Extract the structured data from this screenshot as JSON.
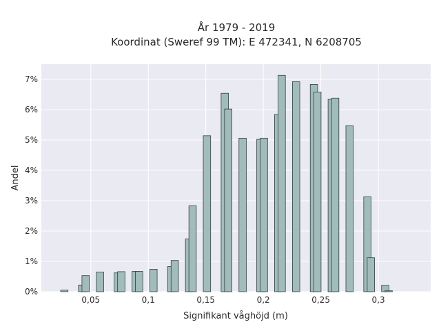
{
  "chart_data": {
    "type": "bar",
    "title": "År 1979 - 2019",
    "subtitle": "Koordinat (Sweref 99 TM): E 472341, N 6208705",
    "xlabel": "Signifikant våghöjd (m)",
    "ylabel": "Andel",
    "xlim": [
      0.007,
      0.3455
    ],
    "ylim": [
      0,
      7.5
    ],
    "x_ticks": [
      {
        "value": 0.05,
        "label": "0,05"
      },
      {
        "value": 0.1,
        "label": "0,1"
      },
      {
        "value": 0.15,
        "label": "0,15"
      },
      {
        "value": 0.2,
        "label": "0,2"
      },
      {
        "value": 0.25,
        "label": "0,25"
      },
      {
        "value": 0.3,
        "label": "0,3"
      }
    ],
    "y_ticks": [
      {
        "value": 0,
        "label": "0%"
      },
      {
        "value": 1,
        "label": "1%"
      },
      {
        "value": 2,
        "label": "2%"
      },
      {
        "value": 3,
        "label": "3%"
      },
      {
        "value": 4,
        "label": "4%"
      },
      {
        "value": 5,
        "label": "5%"
      },
      {
        "value": 6,
        "label": "6%"
      },
      {
        "value": 7,
        "label": "7%"
      }
    ],
    "bar_width": 0.0064,
    "bars": [
      {
        "x": 0.027,
        "value": 0.05
      },
      {
        "x": 0.0425,
        "value": 0.22
      },
      {
        "x": 0.0455,
        "value": 0.53
      },
      {
        "x": 0.058,
        "value": 0.65
      },
      {
        "x": 0.0735,
        "value": 0.62
      },
      {
        "x": 0.0765,
        "value": 0.66
      },
      {
        "x": 0.089,
        "value": 0.67
      },
      {
        "x": 0.092,
        "value": 0.67
      },
      {
        "x": 0.1045,
        "value": 0.74
      },
      {
        "x": 0.12,
        "value": 0.83
      },
      {
        "x": 0.123,
        "value": 1.03
      },
      {
        "x": 0.1355,
        "value": 1.74
      },
      {
        "x": 0.1385,
        "value": 2.83
      },
      {
        "x": 0.151,
        "value": 5.14
      },
      {
        "x": 0.1665,
        "value": 6.54
      },
      {
        "x": 0.1695,
        "value": 6.02
      },
      {
        "x": 0.182,
        "value": 5.06
      },
      {
        "x": 0.1975,
        "value": 5.02
      },
      {
        "x": 0.2005,
        "value": 5.06
      },
      {
        "x": 0.213,
        "value": 5.84
      },
      {
        "x": 0.216,
        "value": 7.13
      },
      {
        "x": 0.2285,
        "value": 6.92
      },
      {
        "x": 0.244,
        "value": 6.83
      },
      {
        "x": 0.247,
        "value": 6.58
      },
      {
        "x": 0.2595,
        "value": 6.34
      },
      {
        "x": 0.2625,
        "value": 6.38
      },
      {
        "x": 0.275,
        "value": 5.47
      },
      {
        "x": 0.2905,
        "value": 3.13
      },
      {
        "x": 0.2935,
        "value": 1.12
      },
      {
        "x": 0.306,
        "value": 0.21
      },
      {
        "x": 0.309,
        "value": 0.03
      }
    ],
    "grid": true,
    "colors": {
      "plot_bg": "#eaeaf2",
      "bar_fill": "#a2bbbb",
      "bar_stroke": "#2f3f3f",
      "grid": "#ffffff"
    }
  }
}
